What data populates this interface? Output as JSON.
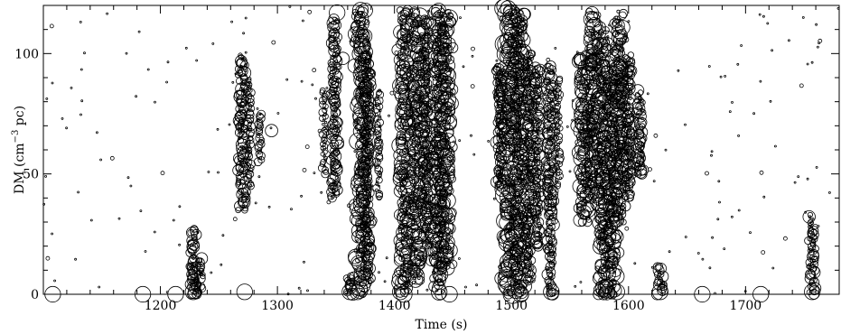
{
  "chart_data": {
    "type": "scatter",
    "title": "",
    "xlabel": "Time (s)",
    "ylabel_parts": {
      "pre": "DM (cm",
      "sup": "−3",
      "post": " pc)"
    },
    "xlim": [
      1100,
      1780
    ],
    "ylim": [
      0,
      120
    ],
    "xticks": [
      {
        "value": 1200,
        "label": "1200"
      },
      {
        "value": 1300,
        "label": "1300"
      },
      {
        "value": 1400,
        "label": "1400"
      },
      {
        "value": 1500,
        "label": "1500"
      },
      {
        "value": 1600,
        "label": "1600"
      },
      {
        "value": 1700,
        "label": "1700"
      }
    ],
    "yticks": [
      {
        "value": 0,
        "label": "0"
      },
      {
        "value": 50,
        "label": "50"
      },
      {
        "value": 100,
        "label": "100"
      }
    ],
    "marker": "open-circle",
    "marker_size_meaning": "larger circle = stronger candidate (S/N)",
    "grid": false,
    "legend": "none",
    "series": [
      {
        "points": [
          [
            1108,
            0,
            4
          ],
          [
            1185,
            0,
            4
          ],
          [
            1213,
            0,
            4
          ],
          [
            1228,
            1,
            4
          ],
          [
            1272,
            1,
            4
          ],
          [
            1362,
            1,
            4
          ],
          [
            1405,
            1,
            4
          ],
          [
            1447,
            0,
            4
          ],
          [
            1534,
            1,
            4
          ],
          [
            1590,
            1,
            4
          ],
          [
            1627,
            1,
            4
          ],
          [
            1663,
            0,
            4
          ],
          [
            1713,
            0,
            4
          ],
          [
            1757,
            1,
            4
          ],
          [
            1372,
            104,
            4
          ],
          [
            1413,
            112,
            4
          ],
          [
            1436,
            117,
            4
          ],
          [
            1440,
            100,
            4
          ],
          [
            1500,
            117,
            4
          ],
          [
            1507,
            112,
            4
          ],
          [
            1351,
            117,
            4
          ],
          [
            1371,
            118,
            4
          ],
          [
            1570,
            96,
            4
          ],
          [
            1583,
            92,
            4
          ],
          [
            1272,
            92,
            3
          ],
          [
            1349,
            88,
            3
          ],
          [
            1556,
            70,
            3
          ],
          [
            1348,
            70,
            3
          ],
          [
            1295,
            68,
            3
          ],
          [
            1356,
            98,
            3
          ]
        ],
        "columns": [
          {
            "x": 1228,
            "y_min": 0,
            "y_max": 28,
            "scale": 2
          },
          {
            "x": 1233,
            "y_min": 0,
            "y_max": 15,
            "scale": 2
          },
          {
            "x": 1270,
            "y_min": 35,
            "y_max": 100,
            "scale": 2
          },
          {
            "x": 1276,
            "y_min": 45,
            "y_max": 90,
            "scale": 1
          },
          {
            "x": 1285,
            "y_min": 55,
            "y_max": 75,
            "scale": 1
          },
          {
            "x": 1340,
            "y_min": 50,
            "y_max": 85,
            "scale": 1
          },
          {
            "x": 1349,
            "y_min": 40,
            "y_max": 115,
            "scale": 2
          },
          {
            "x": 1362,
            "y_min": 0,
            "y_max": 8,
            "scale": 2
          },
          {
            "x": 1372,
            "y_min": 0,
            "y_max": 118,
            "scale": 3
          },
          {
            "x": 1377,
            "y_min": 5,
            "y_max": 100,
            "scale": 2
          },
          {
            "x": 1386,
            "y_min": 40,
            "y_max": 85,
            "scale": 1
          },
          {
            "x": 1408,
            "y_min": 0,
            "y_max": 118,
            "scale": 3
          },
          {
            "x": 1419,
            "y_min": 5,
            "y_max": 118,
            "scale": 3
          },
          {
            "x": 1427,
            "y_min": 20,
            "y_max": 115,
            "scale": 2
          },
          {
            "x": 1437,
            "y_min": 0,
            "y_max": 118,
            "scale": 3
          },
          {
            "x": 1444,
            "y_min": 10,
            "y_max": 118,
            "scale": 3
          },
          {
            "x": 1490,
            "y_min": 45,
            "y_max": 95,
            "scale": 2
          },
          {
            "x": 1499,
            "y_min": 0,
            "y_max": 120,
            "scale": 4
          },
          {
            "x": 1507,
            "y_min": 0,
            "y_max": 118,
            "scale": 3
          },
          {
            "x": 1515,
            "y_min": 5,
            "y_max": 100,
            "scale": 2
          },
          {
            "x": 1522,
            "y_min": 20,
            "y_max": 95,
            "scale": 2
          },
          {
            "x": 1533,
            "y_min": 0,
            "y_max": 95,
            "scale": 2
          },
          {
            "x": 1540,
            "y_min": 45,
            "y_max": 90,
            "scale": 1
          },
          {
            "x": 1562,
            "y_min": 30,
            "y_max": 100,
            "scale": 3
          },
          {
            "x": 1570,
            "y_min": 40,
            "y_max": 118,
            "scale": 3
          },
          {
            "x": 1578,
            "y_min": 0,
            "y_max": 110,
            "scale": 3
          },
          {
            "x": 1586,
            "y_min": 0,
            "y_max": 90,
            "scale": 3
          },
          {
            "x": 1592,
            "y_min": 30,
            "y_max": 118,
            "scale": 3
          },
          {
            "x": 1600,
            "y_min": 40,
            "y_max": 100,
            "scale": 2
          },
          {
            "x": 1609,
            "y_min": 50,
            "y_max": 85,
            "scale": 2
          },
          {
            "x": 1627,
            "y_min": 0,
            "y_max": 12,
            "scale": 2
          },
          {
            "x": 1757,
            "y_min": 0,
            "y_max": 33,
            "scale": 2
          }
        ],
        "noise_count": 260
      }
    ]
  }
}
